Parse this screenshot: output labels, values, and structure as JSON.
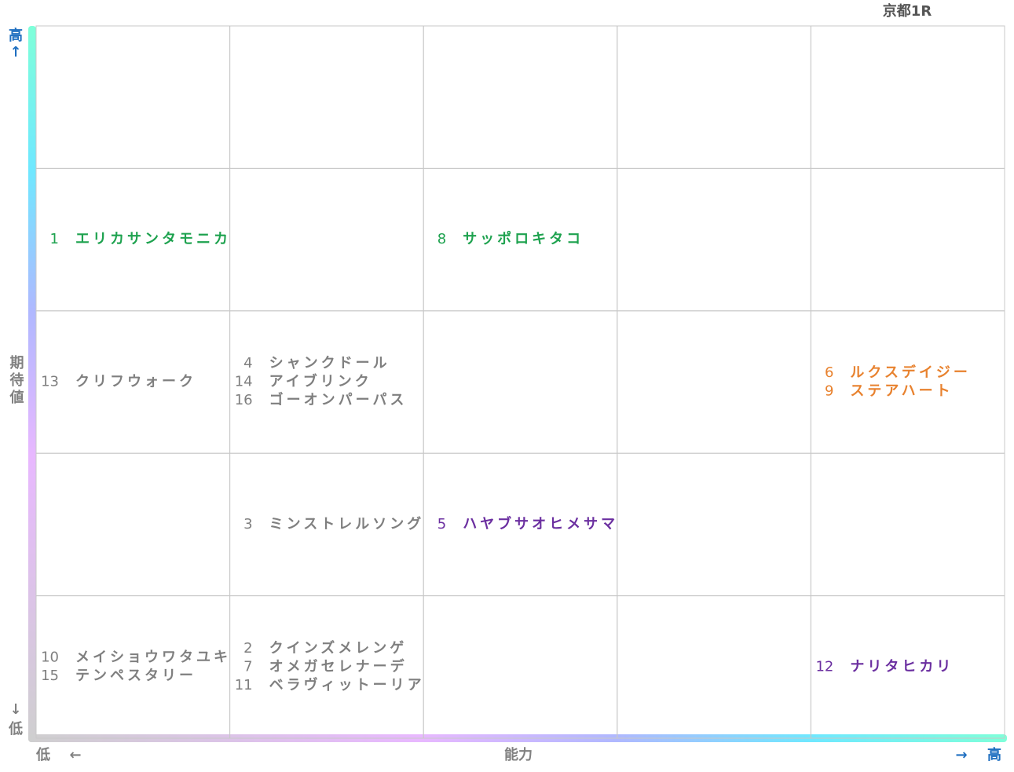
{
  "header": {
    "title": "京都1R"
  },
  "y_axis": {
    "top": "高",
    "top_arrow": "↑",
    "label": "期待値",
    "bottom_arrow": "↓",
    "bottom": "低"
  },
  "x_axis": {
    "left": "低",
    "left_arrow": "←",
    "label": "能力",
    "right_arrow": "→",
    "right": "高"
  },
  "grid": {
    "rows": [
      [
        {
          "entries": []
        },
        {
          "entries": []
        },
        {
          "entries": []
        },
        {
          "entries": []
        },
        {
          "entries": []
        }
      ],
      [
        {
          "color": "#1ea24f",
          "entries": [
            {
              "number": 1,
              "name": "エリカサンタモニカ"
            }
          ]
        },
        {
          "entries": []
        },
        {
          "color": "#1ea24f",
          "entries": [
            {
              "number": 8,
              "name": "サッポロキタコ"
            }
          ]
        },
        {
          "entries": []
        },
        {
          "entries": []
        }
      ],
      [
        {
          "color": "#7f7f7f",
          "entries": [
            {
              "number": 13,
              "name": "クリフウォーク"
            }
          ]
        },
        {
          "color": "#7f7f7f",
          "entries": [
            {
              "number": 4,
              "name": "シャンクドール"
            },
            {
              "number": 14,
              "name": "アイブリンク"
            },
            {
              "number": 16,
              "name": "ゴーオンパーパス"
            }
          ]
        },
        {
          "entries": []
        },
        {
          "entries": []
        },
        {
          "color": "#e8822f",
          "entries": [
            {
              "number": 6,
              "name": "ルクスデイジー"
            },
            {
              "number": 9,
              "name": "ステアハート"
            }
          ]
        }
      ],
      [
        {
          "entries": []
        },
        {
          "color": "#7f7f7f",
          "entries": [
            {
              "number": 3,
              "name": "ミンストレルソング"
            }
          ]
        },
        {
          "color": "#6b2fa0",
          "entries": [
            {
              "number": 5,
              "name": "ハヤブサオヒメサマ"
            }
          ]
        },
        {
          "entries": []
        },
        {
          "entries": []
        }
      ],
      [
        {
          "color": "#7f7f7f",
          "entries": [
            {
              "number": 10,
              "name": "メイショウワタユキ"
            },
            {
              "number": 15,
              "name": "テンペスタリー"
            }
          ]
        },
        {
          "color": "#7f7f7f",
          "entries": [
            {
              "number": 2,
              "name": "クインズメレンゲ"
            },
            {
              "number": 7,
              "name": "オメガセレナーデ"
            },
            {
              "number": 11,
              "name": "ベラヴィットーリア"
            }
          ]
        },
        {
          "entries": []
        },
        {
          "entries": []
        },
        {
          "color": "#6b2fa0",
          "entries": [
            {
              "number": 12,
              "name": "ナリタヒカリ"
            }
          ]
        }
      ]
    ]
  }
}
